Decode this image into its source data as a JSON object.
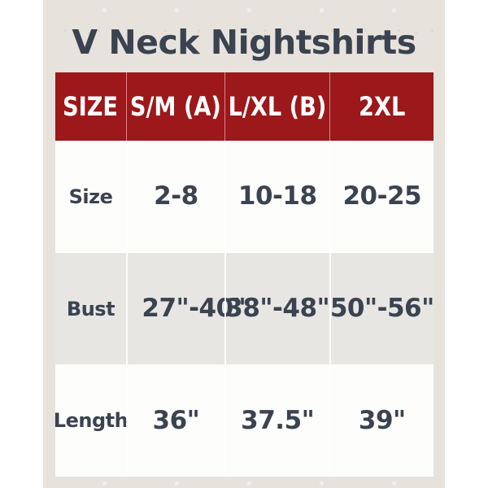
{
  "title": "V Neck Nightshirts",
  "colors": {
    "header_bg": "#9C181A",
    "header_text": "#FFFFFF",
    "title_text": "#3A434F",
    "body_text": "#3A434F",
    "row_white_bg": "#FDFDFC",
    "row_gray_bg": "#E7E6E3",
    "paper_bg": "#E7E3DC",
    "canvas_bg": "#FFFFFF"
  },
  "chart_data": {
    "type": "table",
    "title": "V Neck Nightshirts",
    "columns": [
      "SIZE",
      "S/M (A)",
      "L/XL (B)",
      "2XL"
    ],
    "rows": [
      [
        "Size",
        "2-8",
        "10-18",
        "20-25"
      ],
      [
        "Bust",
        "27\"-40\"",
        "38\"-48\"",
        "50\"-56\""
      ],
      [
        "Length",
        "36\"",
        "37.5\"",
        "39\""
      ]
    ],
    "layout": {
      "header_style": "dark-red band, white bold text",
      "row_striping": [
        "white",
        "light-gray",
        "white"
      ],
      "grid": "vertical separators in header and gray row only"
    }
  }
}
